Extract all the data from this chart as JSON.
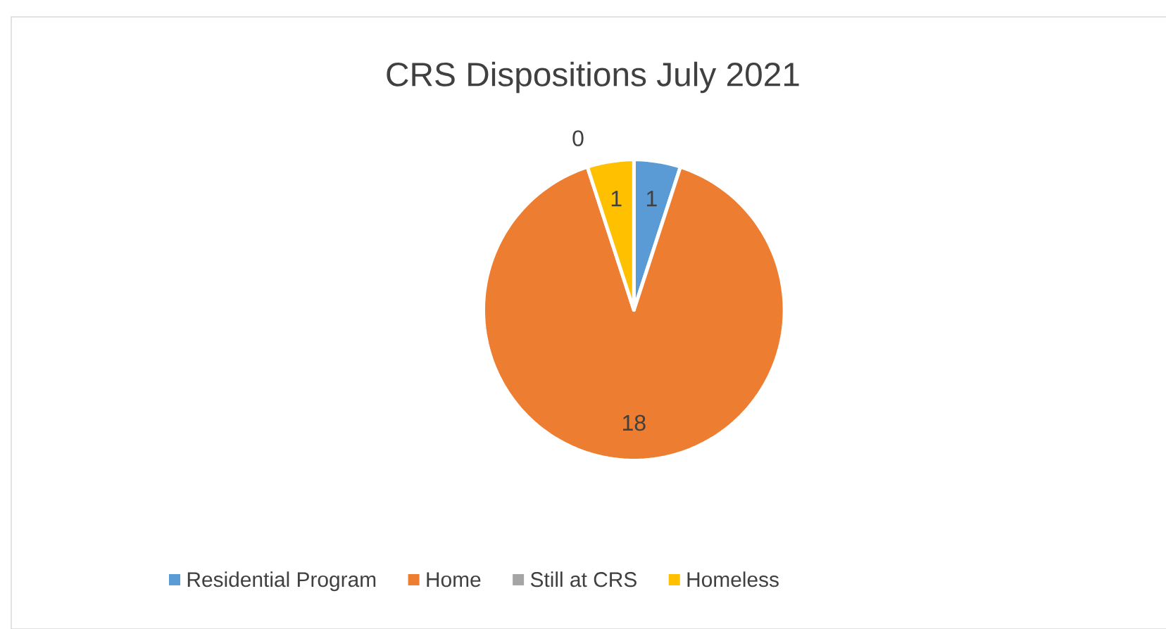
{
  "chart_data": {
    "type": "pie",
    "title": "CRS Dispositions July 2021",
    "categories": [
      "Residential Program",
      "Home",
      "Still at CRS",
      "Homeless"
    ],
    "values": [
      1,
      18,
      0,
      1
    ],
    "colors": [
      "#5b9bd5",
      "#ed7d31",
      "#a5a5a5",
      "#ffc000"
    ],
    "value_labels": [
      "1",
      "18",
      "0",
      "1"
    ],
    "legend": "bottom"
  }
}
